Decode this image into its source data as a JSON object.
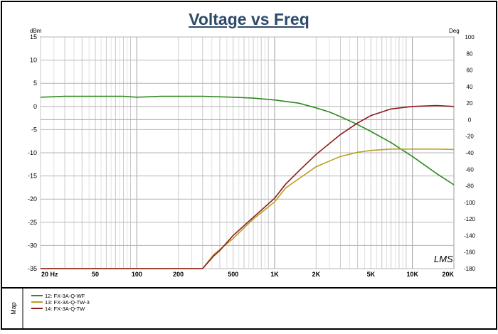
{
  "chart_data": {
    "type": "line",
    "title": "Voltage vs Freq",
    "y_left_unit": "dBm",
    "y_right_unit": "Deg",
    "x_scale": "log",
    "xlim": [
      20,
      20000
    ],
    "ylim_left": [
      -35,
      15
    ],
    "ylim_right": [
      -180,
      100
    ],
    "x_tick_values": [
      20,
      50,
      100,
      200,
      500,
      1000,
      2000,
      5000,
      10000,
      20000
    ],
    "x_tick_labels": [
      "20 Hz",
      "50",
      "100",
      "200",
      "500",
      "1K",
      "2K",
      "5K",
      "10K",
      "20K"
    ],
    "y_left_ticks": [
      "15",
      "10",
      "5",
      "0",
      "-5",
      "-10",
      "-15",
      "-20",
      "-25",
      "-30",
      "-35"
    ],
    "y_right_ticks": [
      "100",
      "80",
      "60",
      "40",
      "20",
      "0",
      "-20",
      "-40",
      "-60",
      "-80",
      "-100",
      "-120",
      "-140",
      "-160",
      "-180"
    ],
    "grid": true,
    "annotation": "LMS",
    "panel_label": "Map",
    "series": [
      {
        "name": "12: FX-3A-Q-WF",
        "color": "#2e8b1e",
        "axis": "left",
        "x": [
          20,
          30,
          50,
          80,
          100,
          150,
          200,
          300,
          500,
          700,
          1000,
          1500,
          2000,
          2500,
          3000,
          4000,
          5000,
          7000,
          10000,
          15000,
          20000
        ],
        "y": [
          2.0,
          2.2,
          2.2,
          2.2,
          2.0,
          2.2,
          2.2,
          2.2,
          2.0,
          1.8,
          1.4,
          0.7,
          -0.3,
          -1.2,
          -2.2,
          -3.9,
          -5.4,
          -7.8,
          -10.8,
          -14.5,
          -16.9
        ]
      },
      {
        "name": "13: FX-3A-Q-TW-3",
        "color": "#b8a020",
        "axis": "left",
        "x": [
          20,
          300,
          360,
          500,
          700,
          1000,
          1200,
          1500,
          2000,
          3000,
          4000,
          5000,
          7000,
          10000,
          15000,
          20000
        ],
        "y": [
          -35.0,
          -35.0,
          -32.0,
          -28.5,
          -24.3,
          -20.6,
          -17.6,
          -15.6,
          -13.0,
          -10.8,
          -9.9,
          -9.5,
          -9.2,
          -9.2,
          -9.2,
          -9.3
        ]
      },
      {
        "name": "14: FX-3A-Q-TW",
        "color": "#8b1a1a",
        "axis": "right",
        "x": [
          20,
          300,
          360,
          400,
          500,
          700,
          1000,
          1200,
          1500,
          2000,
          3000,
          4000,
          5000,
          7000,
          10000,
          15000,
          20000
        ],
        "y": [
          -180,
          -180,
          -165,
          -158,
          -140,
          -118,
          -95,
          -78,
          -62,
          -42,
          -18,
          -4,
          5,
          13,
          16,
          17,
          16
        ]
      }
    ]
  }
}
